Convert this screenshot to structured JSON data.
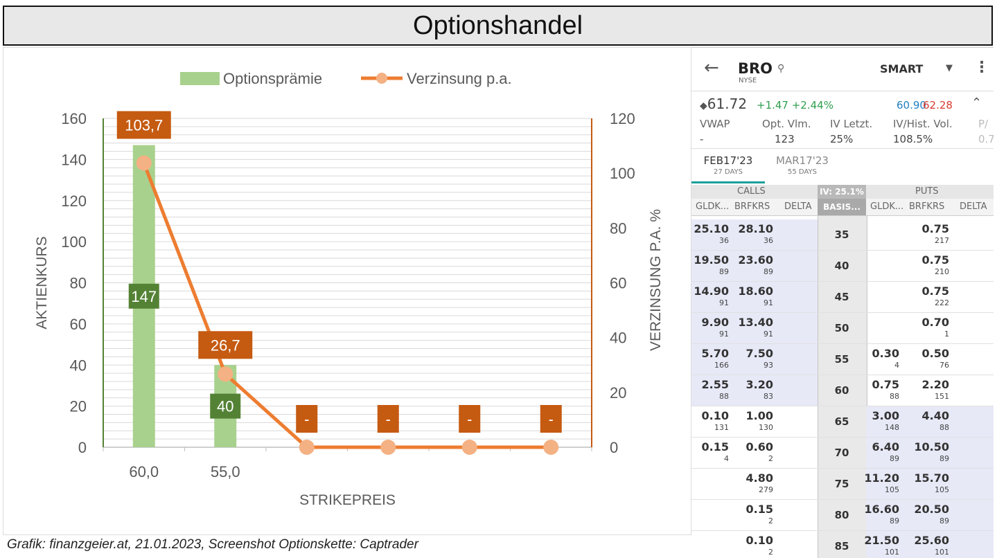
{
  "title": "Optionshandel",
  "caption": "Grafik: finanzgeier.at, 21.01.2023, Screenshot Optionskette: Captrader",
  "colors": {
    "bar": "#a9d18e",
    "bar_label_bg": "#548235",
    "line": "#ed7d31",
    "marker": "#f4b183",
    "line_label_bg": "#c55a11",
    "left_axis": "#548235",
    "right_axis": "#c55a11"
  },
  "chart_data": {
    "type": "bar",
    "categories": [
      "60,0",
      "55,0",
      "",
      "",
      "",
      ""
    ],
    "series": [
      {
        "name": "Optionsprämie",
        "type": "bar",
        "axis": "left",
        "values": [
          147,
          40,
          null,
          null,
          null,
          null
        ],
        "labels": [
          "147",
          "40",
          "",
          "",
          "",
          ""
        ]
      },
      {
        "name": "Verzinsung p.a.",
        "type": "line",
        "axis": "right",
        "values": [
          103.7,
          26.7,
          0,
          0,
          0,
          0
        ],
        "labels": [
          "103,7",
          "26,7",
          "-",
          "-",
          "-",
          "-"
        ]
      }
    ],
    "xlabel": "STRIKEPREIS",
    "ylabel": "AKTIENKURS",
    "y2label": "VERZINSUNG P.A. %",
    "ylim": [
      0,
      160
    ],
    "y2lim": [
      0,
      120
    ],
    "yticks": [
      "0",
      "20",
      "40",
      "60",
      "80",
      "100",
      "120",
      "140",
      "160"
    ],
    "y2ticks": [
      "0",
      "20",
      "40",
      "60",
      "80",
      "100",
      "120"
    ],
    "grid": true,
    "legend": "top"
  },
  "phone": {
    "back_icon": "arrow-left-icon",
    "symbol": "BRO",
    "exchange": "NYSE",
    "search_icon": "search-icon",
    "route": "SMART",
    "last": "61.72",
    "change": "+1.47 +2.44%",
    "bid": "60.90",
    "ask": "62.28",
    "stats": [
      {
        "label": "VWAP",
        "value": "-"
      },
      {
        "label": "Opt. Vlm.",
        "value": "123"
      },
      {
        "label": "IV Letzt.",
        "value": "25%"
      },
      {
        "label": "IV/Hist. Vol.",
        "value": "108.5%"
      },
      {
        "label": "P/",
        "value": "0.7"
      }
    ],
    "expiries": [
      {
        "label": "FEB17'23",
        "days": "27 DAYS"
      },
      {
        "label": "MAR17'23",
        "days": "55 DAYS"
      }
    ],
    "calls_label": "CALLS",
    "puts_label": "PUTS",
    "iv_label": "IV: 25.1%",
    "basis_label": "BASIS...",
    "col_bid": "GLDK...",
    "col_ask": "BRFKRS",
    "col_delta": "DELTA",
    "rows": [
      {
        "strike": "35",
        "call_bid": "25.10",
        "call_bid_size": "36",
        "call_ask": "28.10",
        "call_ask_size": "36",
        "put_bid": "",
        "put_bid_size": "",
        "put_ask": "0.75",
        "put_ask_size": "217",
        "call_itm": true,
        "put_itm": false
      },
      {
        "strike": "40",
        "call_bid": "19.50",
        "call_bid_size": "89",
        "call_ask": "23.60",
        "call_ask_size": "89",
        "put_bid": "",
        "put_bid_size": "",
        "put_ask": "0.75",
        "put_ask_size": "210",
        "call_itm": true,
        "put_itm": false
      },
      {
        "strike": "45",
        "call_bid": "14.90",
        "call_bid_size": "91",
        "call_ask": "18.60",
        "call_ask_size": "91",
        "put_bid": "",
        "put_bid_size": "",
        "put_ask": "0.75",
        "put_ask_size": "222",
        "call_itm": true,
        "put_itm": false
      },
      {
        "strike": "50",
        "call_bid": "9.90",
        "call_bid_size": "91",
        "call_ask": "13.40",
        "call_ask_size": "91",
        "put_bid": "",
        "put_bid_size": "",
        "put_ask": "0.70",
        "put_ask_size": "1",
        "call_itm": true,
        "put_itm": false
      },
      {
        "strike": "55",
        "call_bid": "5.70",
        "call_bid_size": "166",
        "call_ask": "7.50",
        "call_ask_size": "93",
        "put_bid": "0.30",
        "put_bid_size": "4",
        "put_ask": "0.50",
        "put_ask_size": "76",
        "call_itm": true,
        "put_itm": false
      },
      {
        "strike": "60",
        "call_bid": "2.55",
        "call_bid_size": "88",
        "call_ask": "3.20",
        "call_ask_size": "83",
        "put_bid": "0.75",
        "put_bid_size": "88",
        "put_ask": "2.20",
        "put_ask_size": "151",
        "call_itm": true,
        "put_itm": false
      },
      {
        "strike": "65",
        "call_bid": "0.10",
        "call_bid_size": "131",
        "call_ask": "1.00",
        "call_ask_size": "130",
        "put_bid": "3.00",
        "put_bid_size": "148",
        "put_ask": "4.40",
        "put_ask_size": "88",
        "call_itm": false,
        "put_itm": true
      },
      {
        "strike": "70",
        "call_bid": "0.15",
        "call_bid_size": "4",
        "call_ask": "0.60",
        "call_ask_size": "2",
        "put_bid": "6.40",
        "put_bid_size": "89",
        "put_ask": "10.50",
        "put_ask_size": "89",
        "call_itm": false,
        "put_itm": true
      },
      {
        "strike": "75",
        "call_bid": "",
        "call_bid_size": "",
        "call_ask": "4.80",
        "call_ask_size": "279",
        "put_bid": "11.20",
        "put_bid_size": "105",
        "put_ask": "15.70",
        "put_ask_size": "105",
        "call_itm": false,
        "put_itm": true
      },
      {
        "strike": "80",
        "call_bid": "",
        "call_bid_size": "",
        "call_ask": "0.15",
        "call_ask_size": "2",
        "put_bid": "16.60",
        "put_bid_size": "89",
        "put_ask": "20.50",
        "put_ask_size": "89",
        "call_itm": false,
        "put_itm": true
      },
      {
        "strike": "85",
        "call_bid": "",
        "call_bid_size": "",
        "call_ask": "0.10",
        "call_ask_size": "2",
        "put_bid": "21.50",
        "put_bid_size": "101",
        "put_ask": "25.60",
        "put_ask_size": "101",
        "call_itm": false,
        "put_itm": true
      }
    ]
  }
}
